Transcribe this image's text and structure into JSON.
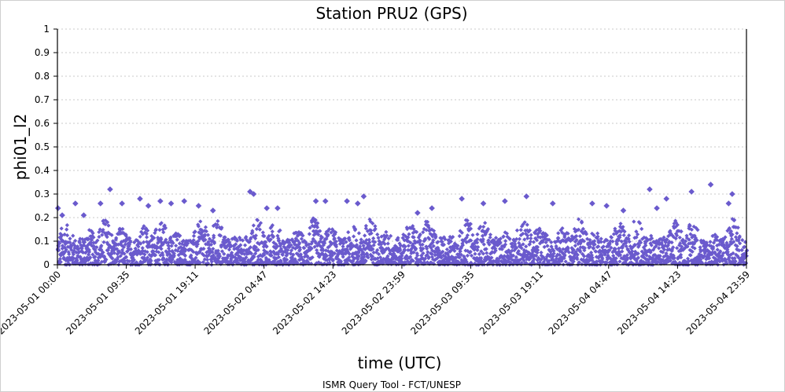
{
  "chart_data": {
    "type": "scatter",
    "title": "Station PRU2 (GPS)",
    "xlabel": "time (UTC)",
    "ylabel": "phi01_l2",
    "footer": "ISMR Query Tool - FCT/UNESP",
    "x_range": [
      "2023-05-01 00:00",
      "2023-05-04 23:59"
    ],
    "ylim": [
      0,
      1
    ],
    "yticks": [
      0,
      0.1,
      0.2,
      0.3,
      0.4,
      0.5,
      0.6,
      0.7,
      0.8,
      0.9,
      1
    ],
    "ytick_labels": [
      "0",
      "0.1",
      "0.2",
      "0.3",
      "0.4",
      "0.5",
      "0.6",
      "0.7",
      "0.8",
      "0.9",
      "1"
    ],
    "xticks": [
      "2023-05-01 00:00",
      "2023-05-01 09:35",
      "2023-05-01 19:11",
      "2023-05-02 04:47",
      "2023-05-02 14:23",
      "2023-05-02 23:59",
      "2023-05-03 09:35",
      "2023-05-03 19:11",
      "2023-05-04 04:47",
      "2023-05-04 14:23",
      "2023-05-04 23:59"
    ],
    "grid": true,
    "marker": "diamond",
    "color": "#6a5acd",
    "series": [
      {
        "x": [
          "2023-05-01 00:05",
          "2023-05-01 00:40",
          "2023-05-01 02:30",
          "2023-05-01 03:40",
          "2023-05-01 06:00",
          "2023-05-01 07:20",
          "2023-05-01 09:00",
          "2023-05-01 11:30",
          "2023-05-01 12:40",
          "2023-05-01 14:20",
          "2023-05-01 15:50",
          "2023-05-01 17:40",
          "2023-05-01 19:40",
          "2023-05-01 21:40",
          "2023-05-02 02:50",
          "2023-05-02 03:20",
          "2023-05-02 05:10",
          "2023-05-02 06:40",
          "2023-05-02 12:00",
          "2023-05-02 13:20",
          "2023-05-02 16:20",
          "2023-05-02 17:50",
          "2023-05-02 18:40",
          "2023-05-03 02:10",
          "2023-05-03 04:10",
          "2023-05-03 08:20",
          "2023-05-03 11:20",
          "2023-05-03 14:20",
          "2023-05-03 17:20",
          "2023-05-03 21:00",
          "2023-05-04 02:30",
          "2023-05-04 04:30",
          "2023-05-04 06:50",
          "2023-05-04 10:30",
          "2023-05-04 11:30",
          "2023-05-04 12:50",
          "2023-05-04 16:20",
          "2023-05-04 19:00",
          "2023-05-04 21:30",
          "2023-05-04 22:00"
        ],
        "y": [
          0.24,
          0.21,
          0.26,
          0.21,
          0.26,
          0.32,
          0.26,
          0.28,
          0.25,
          0.27,
          0.26,
          0.27,
          0.25,
          0.23,
          0.31,
          0.3,
          0.24,
          0.24,
          0.27,
          0.27,
          0.27,
          0.26,
          0.29,
          0.22,
          0.24,
          0.28,
          0.26,
          0.27,
          0.29,
          0.26,
          0.26,
          0.25,
          0.23,
          0.32,
          0.24,
          0.28,
          0.31,
          0.34,
          0.26,
          0.3
        ]
      }
    ],
    "dense_band": {
      "y_min": 0,
      "y_typical_max": 0.2
    }
  }
}
